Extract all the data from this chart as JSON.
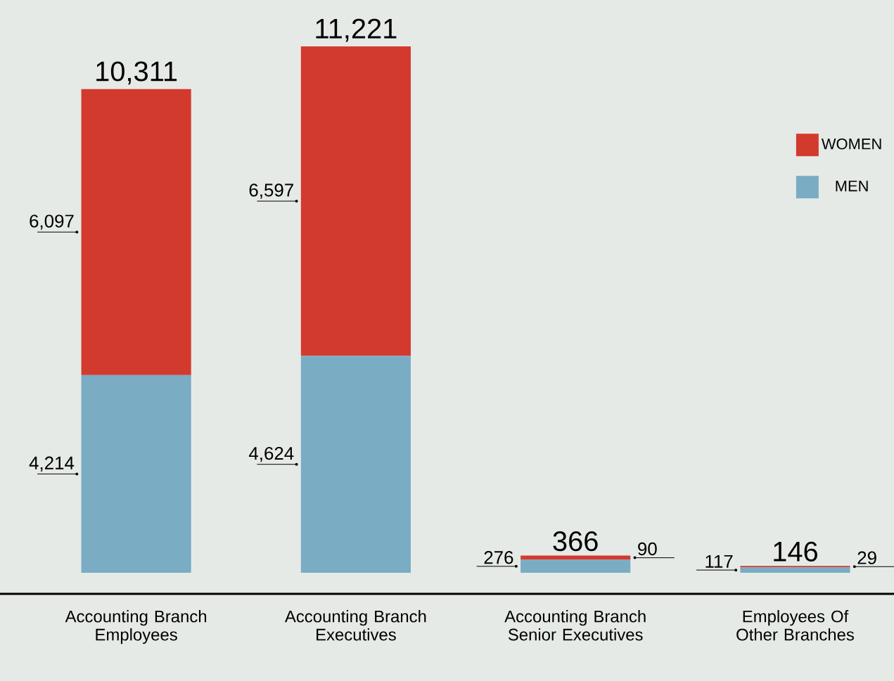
{
  "chart_data": {
    "type": "bar",
    "stacked": true,
    "categories": [
      "Accounting Branch Employees",
      "Accounting Branch Executives",
      "Accounting Branch Senior Executives",
      "Employees Of Other Branches"
    ],
    "series": [
      {
        "name": "MEN",
        "color": "#7aacc4",
        "values": [
          4214,
          4624,
          276,
          117
        ],
        "value_labels": [
          "4,214",
          "4,624",
          "276",
          "117"
        ]
      },
      {
        "name": "WOMEN",
        "color": "#d33a2e",
        "values": [
          6097,
          6597,
          90,
          29
        ],
        "value_labels": [
          "6,097",
          "6,597",
          "90",
          "29"
        ]
      }
    ],
    "totals": [
      "10,311",
      "11,221",
      "366",
      "146"
    ],
    "legend": "right"
  }
}
